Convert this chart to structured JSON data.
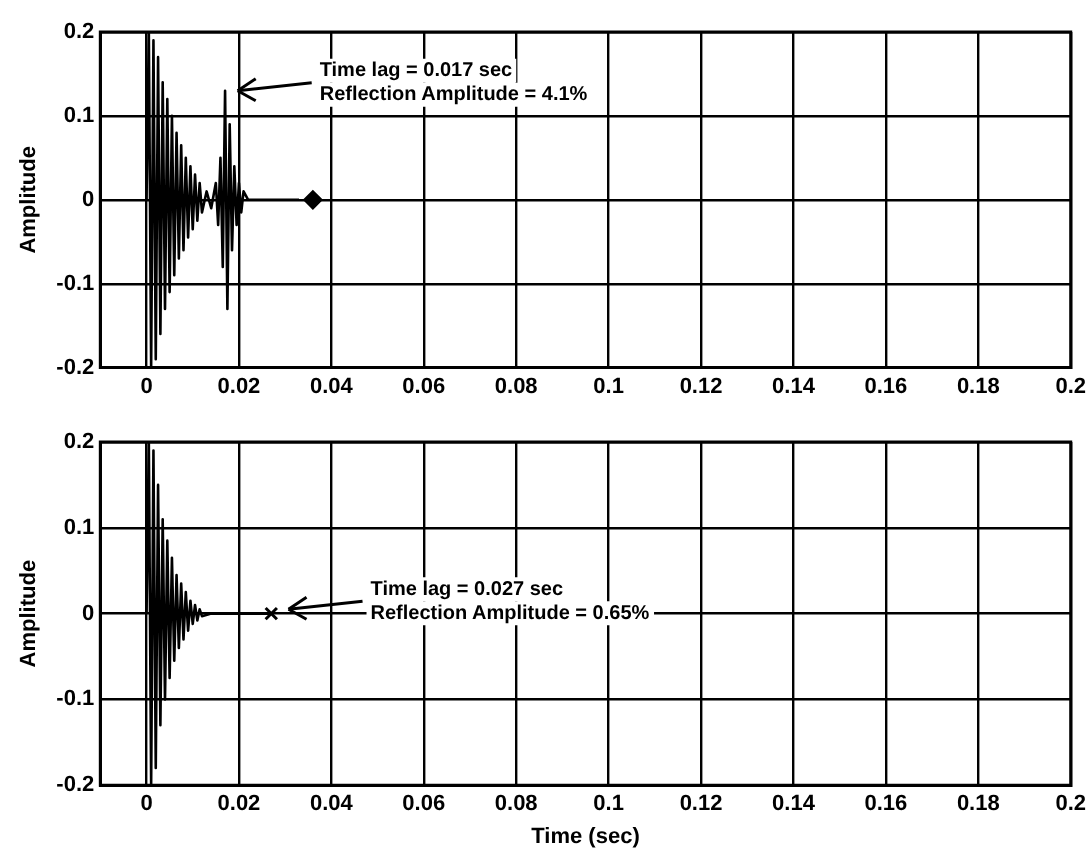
{
  "chart_data": [
    {
      "type": "line",
      "ylabel": "Amplitude",
      "xlim": [
        -0.01,
        0.2
      ],
      "ylim": [
        -0.2,
        0.2
      ],
      "xticks": [
        0,
        0.02,
        0.04,
        0.06,
        0.08,
        0.1,
        0.12,
        0.14,
        0.16,
        0.18,
        0.2
      ],
      "yticks": [
        -0.2,
        -0.1,
        0,
        0.1,
        0.2
      ],
      "grid": true,
      "legend": false,
      "series": [
        {
          "color": "#000000",
          "x": [
            0,
            0.0005,
            0.001,
            0.0015,
            0.002,
            0.0025,
            0.003,
            0.0035,
            0.004,
            0.0045,
            0.005,
            0.0055,
            0.006,
            0.0065,
            0.007,
            0.0075,
            0.008,
            0.0085,
            0.009,
            0.0095,
            0.01,
            0.0105,
            0.011,
            0.0115,
            0.012,
            0.013,
            0.014,
            0.015,
            0.0155,
            0.016,
            0.0165,
            0.017,
            0.0175,
            0.018,
            0.0185,
            0.019,
            0.0195,
            0.02,
            0.0205,
            0.021,
            0.022,
            0.025,
            0.03,
            0.033
          ],
          "values": [
            0,
            0.2,
            -0.2,
            0.19,
            -0.19,
            0.17,
            -0.16,
            0.14,
            -0.13,
            0.12,
            -0.11,
            0.1,
            -0.09,
            0.08,
            -0.07,
            0.065,
            -0.06,
            0.05,
            -0.045,
            0.04,
            -0.035,
            0.03,
            -0.025,
            0.02,
            -0.015,
            0.01,
            -0.01,
            0.02,
            -0.03,
            0.05,
            -0.08,
            0.13,
            -0.13,
            0.09,
            -0.06,
            0.04,
            -0.03,
            0.02,
            -0.015,
            0.01,
            0,
            0,
            0,
            0
          ]
        },
        {
          "type": "scatter",
          "marker": "diamond",
          "color": "#000000",
          "x": [
            0.036
          ],
          "values": [
            0
          ]
        }
      ],
      "annotations": [
        {
          "text": "Time lag = 0.017 sec",
          "x": 0.018,
          "y": 0.13
        },
        "Reflection Amplitude = 4.1%"
      ]
    },
    {
      "type": "line",
      "xlabel": "Time (sec)",
      "ylabel": "Amplitude",
      "xlim": [
        -0.01,
        0.2
      ],
      "ylim": [
        -0.2,
        0.2
      ],
      "xticks": [
        0,
        0.02,
        0.04,
        0.06,
        0.08,
        0.1,
        0.12,
        0.14,
        0.16,
        0.18,
        0.2
      ],
      "yticks": [
        -0.2,
        -0.1,
        0,
        0.1,
        0.2
      ],
      "grid": true,
      "legend": false,
      "series": [
        {
          "color": "#000000",
          "x": [
            0,
            0.0005,
            0.001,
            0.0015,
            0.002,
            0.0025,
            0.003,
            0.0035,
            0.004,
            0.0045,
            0.005,
            0.0055,
            0.006,
            0.0065,
            0.007,
            0.0075,
            0.008,
            0.0085,
            0.009,
            0.0095,
            0.01,
            0.0105,
            0.011,
            0.0115,
            0.012,
            0.014,
            0.027
          ],
          "values": [
            0,
            0.2,
            -0.2,
            0.19,
            -0.18,
            0.15,
            -0.13,
            0.11,
            -0.1,
            0.085,
            -0.075,
            0.065,
            -0.055,
            0.045,
            -0.04,
            0.035,
            -0.03,
            0.025,
            -0.02,
            0.015,
            -0.012,
            0.01,
            -0.008,
            0.005,
            -0.003,
            0,
            0
          ]
        },
        {
          "type": "scatter",
          "marker": "cross",
          "color": "#000000",
          "x": [
            0.027
          ],
          "values": [
            0
          ]
        }
      ],
      "annotations": [
        {
          "text": "Time lag = 0.027 sec",
          "x": 0.029,
          "y": 0.005
        },
        "Reflection Amplitude = 0.65%"
      ]
    }
  ]
}
